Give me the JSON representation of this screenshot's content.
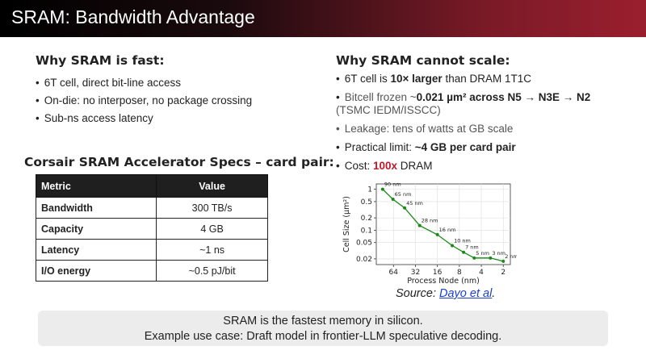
{
  "title": "SRAM: Bandwidth Advantage",
  "left": {
    "heading": "Why SRAM is fast:",
    "bullets": [
      "6T cell, direct bit-line access",
      "On-die: no interposer, no package crossing",
      "Sub-ns access latency"
    ],
    "table_heading": "Corsair SRAM Accelerator Specs – card pair:",
    "table": {
      "headers": [
        "Metric",
        "Value"
      ],
      "rows": [
        {
          "metric": "Bandwidth",
          "value": "300 TB/s"
        },
        {
          "metric": "Capacity",
          "value": "4 GB"
        },
        {
          "metric": "Latency",
          "value": "~1 ns"
        },
        {
          "metric": "I/O energy",
          "value": "~0.5 pJ/bit"
        }
      ]
    }
  },
  "right": {
    "heading": "Why SRAM cannot scale:",
    "b1": {
      "pre": "6T cell is ",
      "bold": "10× larger",
      "post": " than DRAM 1T1C"
    },
    "b2": {
      "pre": "Bitcell frozen ~",
      "bold": "0.021 µm² across N5 → N3E → N2",
      "post": "(TSMC IEDM/ISSCC)"
    },
    "b3": "Leakage: tens of watts at GB scale",
    "b4": {
      "pre": "Practical limit: ",
      "bold": "~4 GB per card pair"
    },
    "b5": {
      "pre": "Cost: ",
      "red": "100x",
      "post": " DRAM"
    }
  },
  "chart_data": {
    "type": "line",
    "xlabel": "Process Node (nm)",
    "ylabel": "Cell Size (µm²)",
    "x_scale": "log-reversed",
    "y_scale": "log",
    "x_ticks": [
      "64",
      "32",
      "16",
      "8",
      "4",
      "2"
    ],
    "y_ticks": [
      "1",
      "0.5",
      "0.2",
      "0.1",
      "0.05",
      "0.02"
    ],
    "grid": true,
    "color": "#1a8a1a",
    "points": [
      {
        "x": 90,
        "y": 1.0,
        "label": "90 nm"
      },
      {
        "x": 65,
        "y": 0.57,
        "label": "65 nm"
      },
      {
        "x": 45,
        "y": 0.35,
        "label": "45 nm"
      },
      {
        "x": 28,
        "y": 0.13,
        "label": "28 nm"
      },
      {
        "x": 16,
        "y": 0.078,
        "label": "16 nm"
      },
      {
        "x": 10,
        "y": 0.042,
        "label": "10 nm"
      },
      {
        "x": 7,
        "y": 0.029,
        "label": "7 nm"
      },
      {
        "x": 5,
        "y": 0.021,
        "label": "5 nm"
      },
      {
        "x": 3,
        "y": 0.021,
        "label": "3 nm"
      },
      {
        "x": 2,
        "y": 0.0175,
        "label": "2 nm"
      }
    ]
  },
  "source": {
    "prefix": "Source: ",
    "link": "Dayo et al",
    "suffix": "."
  },
  "banner": {
    "line1": "SRAM is the fastest memory in silicon.",
    "line2": "Example use case: Draft model in frontier-LLM speculative decoding."
  }
}
